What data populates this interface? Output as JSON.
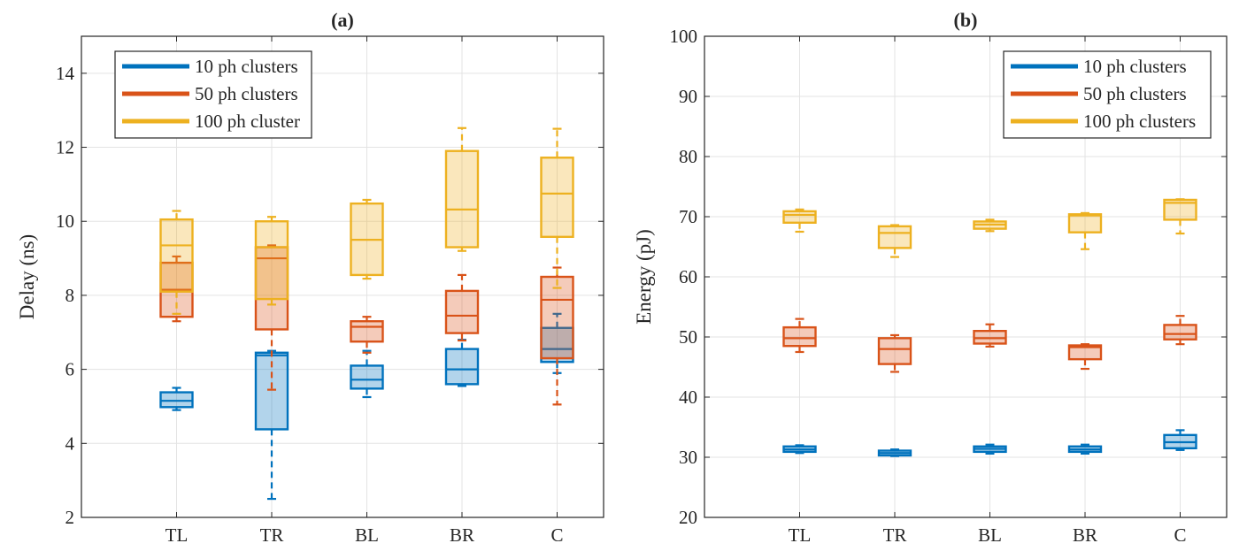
{
  "chart_data": [
    {
      "type": "box",
      "title": "(a)",
      "xlabel": "",
      "ylabel": "Delay (ns)",
      "ylim": [
        2,
        15
      ],
      "yticks": [
        2,
        4,
        6,
        8,
        10,
        12,
        14
      ],
      "categories": [
        "TL",
        "TR",
        "BL",
        "BR",
        "C"
      ],
      "grid": true,
      "legend_position": "top-left",
      "series": [
        {
          "name": "10 ph clusters",
          "color": "#0072BD",
          "boxes": [
            {
              "whislo": 4.9,
              "q1": 4.98,
              "med": 5.15,
              "q3": 5.38,
              "whishi": 5.5
            },
            {
              "whislo": 2.5,
              "q1": 4.38,
              "med": 6.38,
              "q3": 6.45,
              "whishi": 6.5
            },
            {
              "whislo": 5.25,
              "q1": 5.48,
              "med": 5.72,
              "q3": 6.1,
              "whishi": 6.5
            },
            {
              "whislo": 5.55,
              "q1": 5.6,
              "med": 6.0,
              "q3": 6.55,
              "whishi": 6.8
            },
            {
              "whislo": 5.9,
              "q1": 6.2,
              "med": 6.55,
              "q3": 7.12,
              "whishi": 7.5
            }
          ]
        },
        {
          "name": "50 ph clusters",
          "color": "#D95319",
          "boxes": [
            {
              "whislo": 7.3,
              "q1": 7.42,
              "med": 8.15,
              "q3": 8.88,
              "whishi": 9.05
            },
            {
              "whislo": 5.45,
              "q1": 7.08,
              "med": 9.0,
              "q3": 9.3,
              "whishi": 9.35
            },
            {
              "whislo": 6.45,
              "q1": 6.75,
              "med": 7.15,
              "q3": 7.3,
              "whishi": 7.42
            },
            {
              "whislo": 6.78,
              "q1": 6.98,
              "med": 7.45,
              "q3": 8.12,
              "whishi": 8.55
            },
            {
              "whislo": 5.05,
              "q1": 6.3,
              "med": 7.88,
              "q3": 8.5,
              "whishi": 8.75
            }
          ]
        },
        {
          "name": "100 ph cluster",
          "color": "#EDB120",
          "boxes": [
            {
              "whislo": 7.5,
              "q1": 8.1,
              "med": 9.35,
              "q3": 10.05,
              "whishi": 10.28
            },
            {
              "whislo": 7.75,
              "q1": 7.9,
              "med": 9.3,
              "q3": 10.0,
              "whishi": 10.12
            },
            {
              "whislo": 8.45,
              "q1": 8.55,
              "med": 9.5,
              "q3": 10.48,
              "whishi": 10.58
            },
            {
              "whislo": 9.2,
              "q1": 9.3,
              "med": 10.32,
              "q3": 11.9,
              "whishi": 12.52
            },
            {
              "whislo": 8.2,
              "q1": 9.58,
              "med": 10.75,
              "q3": 11.72,
              "whishi": 12.5
            }
          ]
        }
      ]
    },
    {
      "type": "box",
      "title": "(b)",
      "xlabel": "",
      "ylabel": "Energy (pJ)",
      "ylim": [
        20,
        100
      ],
      "yticks": [
        20,
        30,
        40,
        50,
        60,
        70,
        80,
        90,
        100
      ],
      "categories": [
        "TL",
        "TR",
        "BL",
        "BR",
        "C"
      ],
      "grid": true,
      "legend_position": "top-right",
      "series": [
        {
          "name": "10 ph clusters",
          "color": "#0072BD",
          "boxes": [
            {
              "whislo": 30.7,
              "q1": 30.9,
              "med": 31.3,
              "q3": 31.8,
              "whishi": 32.0
            },
            {
              "whislo": 30.2,
              "q1": 30.3,
              "med": 30.7,
              "q3": 31.1,
              "whishi": 31.3
            },
            {
              "whislo": 30.6,
              "q1": 30.9,
              "med": 31.4,
              "q3": 31.8,
              "whishi": 32.1
            },
            {
              "whislo": 30.6,
              "q1": 30.9,
              "med": 31.3,
              "q3": 31.8,
              "whishi": 32.1
            },
            {
              "whislo": 31.2,
              "q1": 31.5,
              "med": 32.5,
              "q3": 33.7,
              "whishi": 34.5
            }
          ]
        },
        {
          "name": "50 ph clusters",
          "color": "#D95319",
          "boxes": [
            {
              "whislo": 47.5,
              "q1": 48.5,
              "med": 49.8,
              "q3": 51.6,
              "whishi": 53.0
            },
            {
              "whislo": 44.2,
              "q1": 45.5,
              "med": 48.0,
              "q3": 49.8,
              "whishi": 50.3
            },
            {
              "whislo": 48.4,
              "q1": 48.9,
              "med": 49.8,
              "q3": 51.0,
              "whishi": 52.1
            },
            {
              "whislo": 44.7,
              "q1": 46.3,
              "med": 48.3,
              "q3": 48.6,
              "whishi": 48.8
            },
            {
              "whislo": 48.8,
              "q1": 49.6,
              "med": 50.5,
              "q3": 52.0,
              "whishi": 53.5
            }
          ]
        },
        {
          "name": "100 ph clusters",
          "color": "#EDB120",
          "boxes": [
            {
              "whislo": 67.5,
              "q1": 69.0,
              "med": 70.3,
              "q3": 70.9,
              "whishi": 71.2
            },
            {
              "whislo": 63.3,
              "q1": 64.8,
              "med": 67.3,
              "q3": 68.4,
              "whishi": 68.6
            },
            {
              "whislo": 67.6,
              "q1": 68.0,
              "med": 68.7,
              "q3": 69.2,
              "whishi": 69.5
            },
            {
              "whislo": 64.6,
              "q1": 67.4,
              "med": 70.2,
              "q3": 70.4,
              "whishi": 70.6
            },
            {
              "whislo": 67.2,
              "q1": 69.5,
              "med": 72.3,
              "q3": 72.8,
              "whishi": 72.9
            }
          ]
        }
      ]
    }
  ]
}
